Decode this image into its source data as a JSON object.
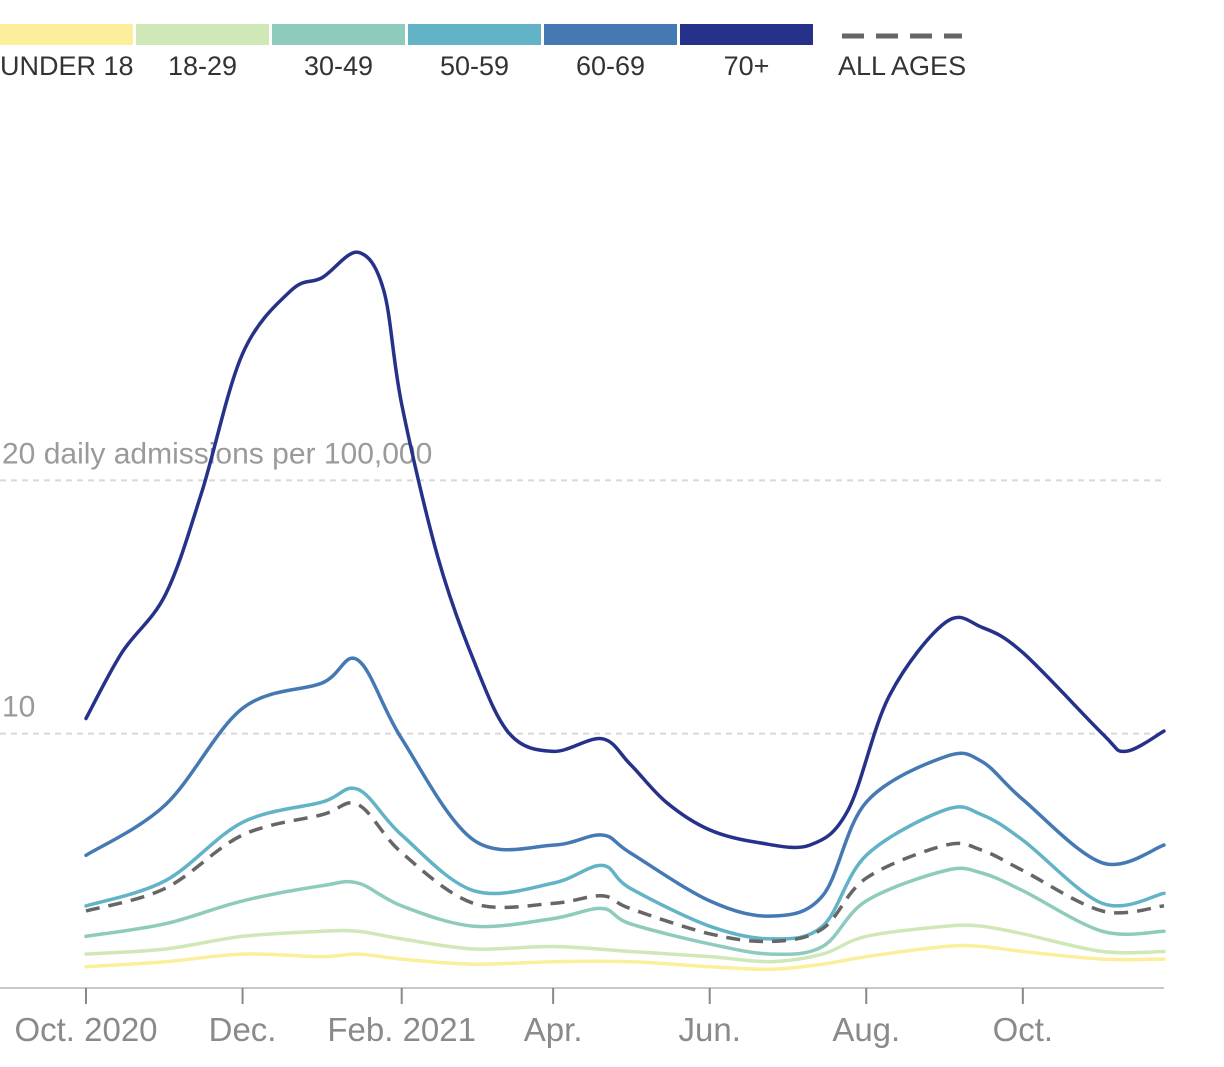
{
  "chart_data": {
    "type": "line",
    "title": "",
    "xlabel": "",
    "ylabel": "daily admissions per 100,000",
    "ylim": [
      0,
      30
    ],
    "xlim": [
      "2020-10-01",
      "2021-11-25"
    ],
    "grid": true,
    "legend_position": "top",
    "gridlines": [
      {
        "value": 10,
        "label": "10"
      },
      {
        "value": 20,
        "label": "20 daily admissions per 100,000"
      }
    ],
    "x_ticks": [
      {
        "date": "2020-10-01",
        "label": "Oct. 2020"
      },
      {
        "date": "2020-12-01",
        "label": "Dec."
      },
      {
        "date": "2021-02-01",
        "label": "Feb. 2021"
      },
      {
        "date": "2021-04-01",
        "label": "Apr."
      },
      {
        "date": "2021-06-01",
        "label": "Jun."
      },
      {
        "date": "2021-08-01",
        "label": "Aug."
      },
      {
        "date": "2021-10-01",
        "label": "Oct."
      }
    ],
    "series": [
      {
        "name": "UNDER 18",
        "color": "#fbef9b",
        "dashed": false,
        "points": [
          [
            "2020-10-01",
            0.8
          ],
          [
            "2020-11-01",
            1.0
          ],
          [
            "2020-12-01",
            1.3
          ],
          [
            "2021-01-01",
            1.2
          ],
          [
            "2021-01-15",
            1.3
          ],
          [
            "2021-02-01",
            1.1
          ],
          [
            "2021-03-01",
            0.9
          ],
          [
            "2021-04-01",
            1.0
          ],
          [
            "2021-05-01",
            1.0
          ],
          [
            "2021-06-01",
            0.8
          ],
          [
            "2021-06-25",
            0.7
          ],
          [
            "2021-07-15",
            0.9
          ],
          [
            "2021-08-01",
            1.2
          ],
          [
            "2021-09-01",
            1.6
          ],
          [
            "2021-09-15",
            1.6
          ],
          [
            "2021-10-01",
            1.4
          ],
          [
            "2021-11-01",
            1.1
          ],
          [
            "2021-11-25",
            1.1
          ]
        ]
      },
      {
        "name": "18-29",
        "color": "#cfe8b8",
        "dashed": false,
        "points": [
          [
            "2020-10-01",
            1.3
          ],
          [
            "2020-11-01",
            1.5
          ],
          [
            "2020-12-01",
            2.0
          ],
          [
            "2021-01-01",
            2.2
          ],
          [
            "2021-01-15",
            2.2
          ],
          [
            "2021-02-01",
            1.9
          ],
          [
            "2021-03-01",
            1.5
          ],
          [
            "2021-04-01",
            1.6
          ],
          [
            "2021-05-01",
            1.4
          ],
          [
            "2021-06-01",
            1.2
          ],
          [
            "2021-06-25",
            1.0
          ],
          [
            "2021-07-15",
            1.3
          ],
          [
            "2021-08-01",
            2.0
          ],
          [
            "2021-09-01",
            2.4
          ],
          [
            "2021-09-15",
            2.4
          ],
          [
            "2021-10-01",
            2.1
          ],
          [
            "2021-11-01",
            1.4
          ],
          [
            "2021-11-25",
            1.4
          ]
        ]
      },
      {
        "name": "30-49",
        "color": "#8fcbbd",
        "dashed": false,
        "points": [
          [
            "2020-10-01",
            2.0
          ],
          [
            "2020-11-01",
            2.5
          ],
          [
            "2020-12-01",
            3.4
          ],
          [
            "2021-01-01",
            4.0
          ],
          [
            "2021-01-15",
            4.1
          ],
          [
            "2021-02-01",
            3.2
          ],
          [
            "2021-03-01",
            2.4
          ],
          [
            "2021-04-01",
            2.7
          ],
          [
            "2021-04-20",
            3.1
          ],
          [
            "2021-05-01",
            2.5
          ],
          [
            "2021-06-01",
            1.7
          ],
          [
            "2021-06-25",
            1.3
          ],
          [
            "2021-07-15",
            1.6
          ],
          [
            "2021-08-01",
            3.4
          ],
          [
            "2021-09-01",
            4.6
          ],
          [
            "2021-09-15",
            4.5
          ],
          [
            "2021-10-01",
            3.8
          ],
          [
            "2021-11-01",
            2.2
          ],
          [
            "2021-11-25",
            2.2
          ]
        ]
      },
      {
        "name": "50-59",
        "color": "#62b3c6",
        "dashed": false,
        "points": [
          [
            "2020-10-01",
            3.2
          ],
          [
            "2020-11-01",
            4.2
          ],
          [
            "2020-12-01",
            6.5
          ],
          [
            "2021-01-01",
            7.3
          ],
          [
            "2021-01-15",
            7.8
          ],
          [
            "2021-02-01",
            6.0
          ],
          [
            "2021-03-01",
            3.8
          ],
          [
            "2021-04-01",
            4.1
          ],
          [
            "2021-04-20",
            4.8
          ],
          [
            "2021-05-01",
            3.9
          ],
          [
            "2021-06-01",
            2.4
          ],
          [
            "2021-06-25",
            1.9
          ],
          [
            "2021-07-15",
            2.4
          ],
          [
            "2021-08-01",
            5.2
          ],
          [
            "2021-09-01",
            7.0
          ],
          [
            "2021-09-15",
            6.8
          ],
          [
            "2021-10-01",
            5.8
          ],
          [
            "2021-11-01",
            3.3
          ],
          [
            "2021-11-25",
            3.7
          ]
        ]
      },
      {
        "name": "60-69",
        "color": "#4479b4",
        "dashed": false,
        "points": [
          [
            "2020-10-01",
            5.2
          ],
          [
            "2020-11-01",
            7.2
          ],
          [
            "2020-12-01",
            11.0
          ],
          [
            "2021-01-01",
            12.0
          ],
          [
            "2021-01-15",
            12.9
          ],
          [
            "2021-02-01",
            9.8
          ],
          [
            "2021-03-01",
            5.8
          ],
          [
            "2021-04-01",
            5.6
          ],
          [
            "2021-04-20",
            6.0
          ],
          [
            "2021-05-01",
            5.3
          ],
          [
            "2021-06-01",
            3.4
          ],
          [
            "2021-06-25",
            2.8
          ],
          [
            "2021-07-15",
            3.6
          ],
          [
            "2021-08-01",
            7.3
          ],
          [
            "2021-09-01",
            9.1
          ],
          [
            "2021-09-15",
            8.9
          ],
          [
            "2021-10-01",
            7.4
          ],
          [
            "2021-11-01",
            4.9
          ],
          [
            "2021-11-25",
            5.6
          ]
        ]
      },
      {
        "name": "70+",
        "color": "#26328a",
        "dashed": false,
        "points": [
          [
            "2020-10-01",
            10.6
          ],
          [
            "2020-10-15",
            13.2
          ],
          [
            "2020-11-01",
            15.5
          ],
          [
            "2020-11-15",
            19.5
          ],
          [
            "2020-12-01",
            25.0
          ],
          [
            "2020-12-20",
            27.5
          ],
          [
            "2021-01-01",
            28.0
          ],
          [
            "2021-01-15",
            29.0
          ],
          [
            "2021-01-25",
            27.5
          ],
          [
            "2021-02-01",
            23.0
          ],
          [
            "2021-02-15",
            17.0
          ],
          [
            "2021-03-01",
            12.9
          ],
          [
            "2021-03-15",
            10.0
          ],
          [
            "2021-04-01",
            9.3
          ],
          [
            "2021-04-20",
            9.8
          ],
          [
            "2021-05-01",
            8.8
          ],
          [
            "2021-05-15",
            7.3
          ],
          [
            "2021-06-01",
            6.2
          ],
          [
            "2021-06-20",
            5.7
          ],
          [
            "2021-07-10",
            5.6
          ],
          [
            "2021-07-25",
            7.0
          ],
          [
            "2021-08-10",
            11.5
          ],
          [
            "2021-09-01",
            14.4
          ],
          [
            "2021-09-15",
            14.2
          ],
          [
            "2021-10-01",
            13.2
          ],
          [
            "2021-11-01",
            10.0
          ],
          [
            "2021-11-10",
            9.3
          ],
          [
            "2021-11-25",
            10.1
          ]
        ]
      },
      {
        "name": "ALL AGES",
        "color": "#666666",
        "dashed": true,
        "points": [
          [
            "2020-10-01",
            3.0
          ],
          [
            "2020-11-01",
            3.9
          ],
          [
            "2020-12-01",
            6.0
          ],
          [
            "2021-01-01",
            6.8
          ],
          [
            "2021-01-15",
            7.2
          ],
          [
            "2021-02-01",
            5.3
          ],
          [
            "2021-03-01",
            3.3
          ],
          [
            "2021-04-01",
            3.3
          ],
          [
            "2021-04-20",
            3.6
          ],
          [
            "2021-05-01",
            3.1
          ],
          [
            "2021-06-01",
            2.1
          ],
          [
            "2021-06-25",
            1.8
          ],
          [
            "2021-07-15",
            2.3
          ],
          [
            "2021-08-01",
            4.3
          ],
          [
            "2021-09-01",
            5.6
          ],
          [
            "2021-09-15",
            5.4
          ],
          [
            "2021-10-01",
            4.6
          ],
          [
            "2021-11-01",
            3.0
          ],
          [
            "2021-11-25",
            3.2
          ]
        ]
      }
    ]
  }
}
